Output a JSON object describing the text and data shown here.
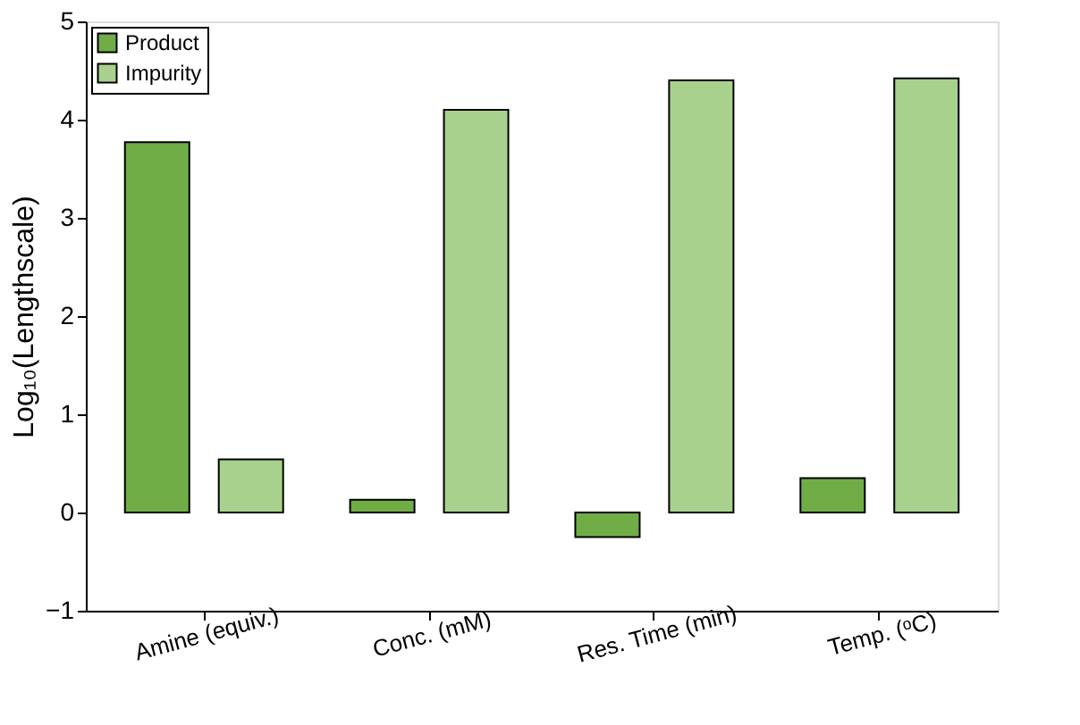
{
  "chart_data": {
    "type": "bar",
    "ylabel": "Log₁₀(Lengthscale)",
    "categories": [
      "Amine (equiv.)",
      "Conc. (mM)",
      "Res. Time (min)",
      "Temp. (ᵒC)"
    ],
    "series": [
      {
        "name": "Product",
        "color": "#70ad47",
        "values": [
          3.77,
          0.13,
          -0.25,
          0.35
        ]
      },
      {
        "name": "Impurity",
        "color": "#a9d18e",
        "values": [
          0.54,
          4.1,
          4.4,
          4.42
        ]
      }
    ],
    "ylim": [
      -1,
      5
    ],
    "yticks": [
      -1,
      0,
      1,
      2,
      3,
      4,
      5
    ],
    "grid": false,
    "legend": "top left"
  }
}
